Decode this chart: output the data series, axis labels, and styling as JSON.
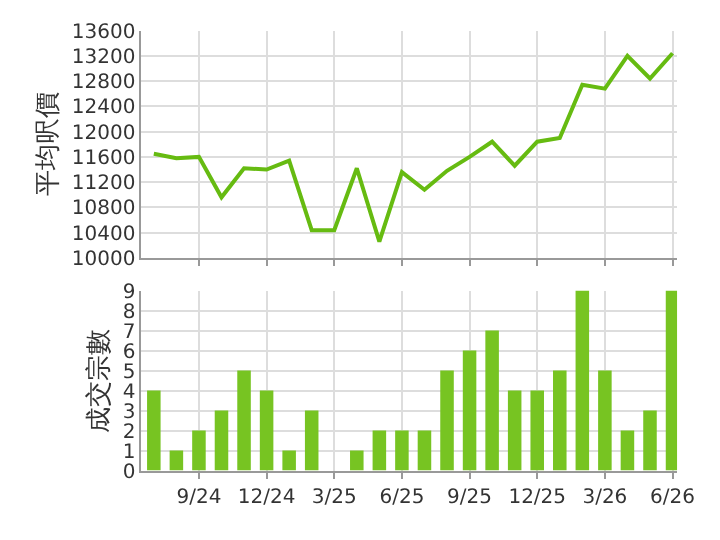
{
  "chart_data": [
    {
      "type": "line",
      "ylabel": "平均呎價",
      "categories": [
        null,
        null,
        null,
        null,
        null,
        null,
        null,
        null,
        null,
        null,
        null,
        null,
        null,
        null,
        null,
        null,
        null,
        null,
        null,
        null,
        null,
        null,
        null,
        null
      ],
      "series": [
        {
          "color": "#66bb11",
          "values": [
            11650,
            11580,
            11600,
            10960,
            11420,
            11400,
            11540,
            10440,
            10440,
            11420,
            10260,
            11360,
            11080,
            11380,
            11600,
            11840,
            11460,
            11840,
            11900,
            12740,
            12680,
            13200,
            12840,
            13240
          ]
        }
      ],
      "ylim": [
        10000,
        13600
      ],
      "yticks": [
        10000,
        10400,
        10800,
        11200,
        11600,
        12000,
        12400,
        12800,
        13200,
        13600
      ],
      "grid": true,
      "tick_labels": "y"
    },
    {
      "type": "bar",
      "ylabel": "成交宗數",
      "categories": [
        null,
        null,
        "9/24",
        null,
        null,
        "12/24",
        null,
        null,
        "3/25",
        null,
        null,
        "6/25",
        null,
        null,
        "9/25",
        null,
        null,
        "12/25",
        null,
        null,
        "3/26",
        null,
        null,
        "6/26"
      ],
      "series": [
        {
          "color": "#77c422",
          "values": [
            4,
            1,
            2,
            3,
            5,
            4,
            1,
            3,
            0,
            1,
            2,
            2,
            2,
            5,
            6,
            7,
            4,
            4,
            5,
            9,
            5,
            2,
            3,
            9
          ]
        }
      ],
      "ylim": [
        0,
        9
      ],
      "yticks": [
        0,
        1,
        2,
        3,
        4,
        5,
        6,
        7,
        8,
        9
      ],
      "grid": true
    }
  ]
}
